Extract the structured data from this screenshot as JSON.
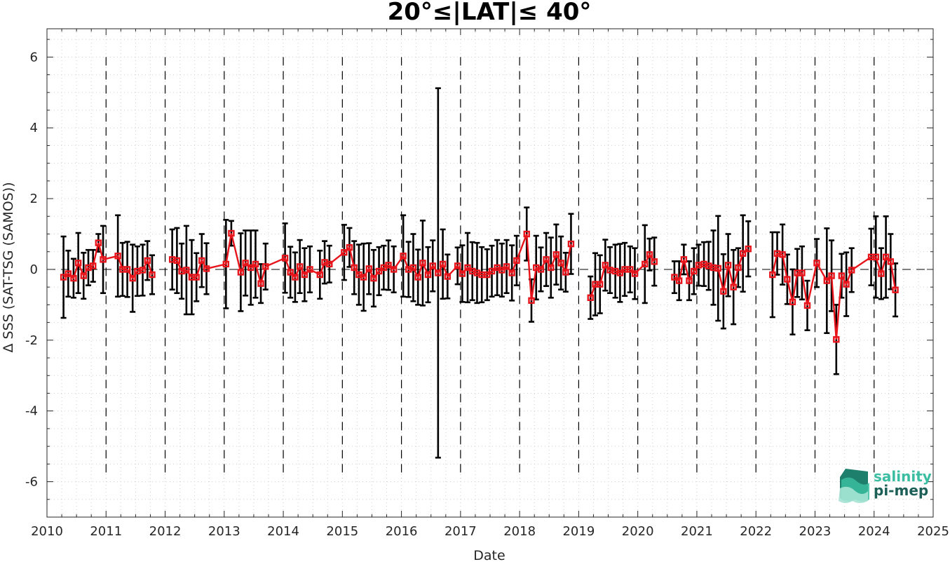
{
  "chart_data": {
    "type": "line",
    "title": "20°≤|LAT|≤ 40°",
    "xlabel": "Date",
    "ylabel": "Δ SSS (SAT-TSG (SAMOS))",
    "xlim": [
      2010,
      2025
    ],
    "ylim": [
      -7,
      6.8
    ],
    "xticks": [
      "2010",
      "2011",
      "2012",
      "2013",
      "2014",
      "2015",
      "2016",
      "2017",
      "2018",
      "2019",
      "2020",
      "2021",
      "2022",
      "2023",
      "2024",
      "2025"
    ],
    "yticks": [
      "-6",
      "-4",
      "-2",
      "0",
      "2",
      "4",
      "6"
    ],
    "grid": "minor dotted",
    "year_boundaries": "dashed vertical lines",
    "zero_line": "dashed horizontal line",
    "series": [
      {
        "color": "#e8141b",
        "marker": "square",
        "segments": [
          [
            [
              2010.28,
              -0.22,
              1.15
            ],
            [
              2010.36,
              -0.12,
              0.65
            ],
            [
              2010.45,
              -0.25,
              0.55
            ],
            [
              2010.53,
              0.18,
              0.85
            ],
            [
              2010.62,
              -0.18,
              0.65
            ],
            [
              2010.7,
              0.05,
              0.5
            ],
            [
              2010.78,
              0.1,
              0.45
            ],
            [
              2010.87,
              0.75,
              0.25
            ],
            [
              2010.95,
              0.28,
              0.95
            ],
            [
              2011.2,
              0.38,
              1.15
            ],
            [
              2011.28,
              0.0,
              0.75
            ],
            [
              2011.36,
              0.0,
              0.78
            ],
            [
              2011.45,
              -0.25,
              0.95
            ],
            [
              2011.53,
              -0.05,
              0.7
            ],
            [
              2011.62,
              -0.02,
              0.72
            ],
            [
              2011.7,
              0.25,
              0.55
            ],
            [
              2011.78,
              -0.15,
              0.55
            ]
          ],
          [
            [
              2012.12,
              0.28,
              0.85
            ],
            [
              2012.2,
              0.25,
              0.92
            ],
            [
              2012.28,
              -0.05,
              0.78
            ],
            [
              2012.36,
              -0.02,
              1.25
            ],
            [
              2012.45,
              -0.22,
              1.05
            ],
            [
              2012.53,
              -0.22,
              0.68
            ],
            [
              2012.62,
              0.25,
              0.75
            ],
            [
              2012.7,
              0.02,
              0.72
            ],
            [
              2013.03,
              0.15,
              1.25
            ],
            [
              2013.12,
              1.02,
              0.35
            ],
            [
              2013.28,
              -0.08,
              1.1
            ],
            [
              2013.36,
              0.18,
              0.92
            ],
            [
              2013.45,
              0.05,
              1.05
            ],
            [
              2013.53,
              0.15,
              0.95
            ],
            [
              2013.62,
              -0.4,
              0.55
            ],
            [
              2013.7,
              0.08,
              0.65
            ],
            [
              2014.03,
              0.32,
              0.98
            ],
            [
              2014.12,
              -0.08,
              0.72
            ],
            [
              2014.2,
              -0.22,
              0.7
            ],
            [
              2014.28,
              0.08,
              0.75
            ],
            [
              2014.36,
              -0.15,
              0.75
            ],
            [
              2014.45,
              0.0,
              0.65
            ],
            [
              2014.62,
              -0.15,
              0.68
            ],
            [
              2014.7,
              0.2,
              0.6
            ],
            [
              2014.78,
              0.15,
              0.52
            ],
            [
              2015.03,
              0.48,
              0.78
            ],
            [
              2015.12,
              0.62,
              0.55
            ],
            [
              2015.2,
              0.05,
              0.75
            ],
            [
              2015.28,
              -0.15,
              0.85
            ],
            [
              2015.36,
              -0.22,
              0.95
            ],
            [
              2015.45,
              0.02,
              0.72
            ],
            [
              2015.53,
              -0.25,
              0.8
            ],
            [
              2015.62,
              -0.05,
              0.68
            ],
            [
              2015.7,
              0.05,
              0.62
            ],
            [
              2015.78,
              0.12,
              0.7
            ],
            [
              2015.87,
              0.0,
              0.65
            ],
            [
              2016.03,
              0.38,
              1.15
            ],
            [
              2016.12,
              0.0,
              0.78
            ],
            [
              2016.2,
              0.05,
              0.95
            ],
            [
              2016.28,
              -0.22,
              0.78
            ],
            [
              2016.36,
              0.18,
              1.2
            ],
            [
              2016.45,
              -0.15,
              0.78
            ],
            [
              2016.53,
              0.1,
              0.72
            ],
            [
              2016.62,
              -0.1,
              5.22
            ],
            [
              2016.7,
              0.15,
              0.98
            ],
            [
              2016.78,
              -0.2,
              0.62
            ],
            [
              2016.95,
              0.1,
              0.52
            ],
            [
              2017.03,
              -0.12,
              0.8
            ],
            [
              2017.12,
              0.05,
              0.98
            ],
            [
              2017.2,
              -0.05,
              0.82
            ],
            [
              2017.28,
              -0.1,
              0.85
            ],
            [
              2017.36,
              -0.15,
              0.78
            ],
            [
              2017.45,
              -0.15,
              0.72
            ],
            [
              2017.53,
              -0.05,
              0.72
            ],
            [
              2017.62,
              0.05,
              0.78
            ],
            [
              2017.7,
              -0.02,
              0.75
            ],
            [
              2017.78,
              0.08,
              0.75
            ],
            [
              2017.87,
              -0.1,
              0.78
            ],
            [
              2017.95,
              0.25,
              0.7
            ],
            [
              2018.12,
              1.0,
              0.75
            ],
            [
              2018.2,
              -0.88,
              0.6
            ],
            [
              2018.28,
              0.05,
              0.9
            ],
            [
              2018.36,
              0.0,
              0.62
            ],
            [
              2018.45,
              0.28,
              0.75
            ],
            [
              2018.53,
              0.05,
              0.85
            ],
            [
              2018.62,
              0.42,
              0.85
            ],
            [
              2018.7,
              0.18,
              0.75
            ],
            [
              2018.78,
              -0.08,
              0.55
            ],
            [
              2018.87,
              0.72,
              0.85
            ]
          ],
          [
            [
              2019.2,
              -0.8,
              0.6
            ],
            [
              2019.28,
              -0.42,
              0.88
            ],
            [
              2019.36,
              -0.42,
              0.82
            ],
            [
              2019.45,
              0.12,
              0.72
            ],
            [
              2019.53,
              -0.02,
              0.65
            ],
            [
              2019.62,
              -0.05,
              0.75
            ],
            [
              2019.7,
              -0.1,
              0.82
            ],
            [
              2019.78,
              0.0,
              0.75
            ],
            [
              2019.87,
              0.0,
              0.65
            ],
            [
              2019.95,
              -0.12,
              0.72
            ],
            [
              2020.12,
              0.15,
              1.1
            ],
            [
              2020.2,
              0.42,
              0.45
            ],
            [
              2020.28,
              0.22,
              0.68
            ]
          ],
          [
            [
              2020.62,
              -0.22,
              0.45
            ],
            [
              2020.7,
              -0.32,
              0.55
            ],
            [
              2020.78,
              0.28,
              0.42
            ],
            [
              2020.87,
              -0.32,
              0.55
            ],
            [
              2020.95,
              -0.05,
              0.65
            ],
            [
              2021.03,
              0.12,
              0.58
            ],
            [
              2021.12,
              0.15,
              0.62
            ],
            [
              2021.2,
              0.1,
              0.68
            ],
            [
              2021.28,
              0.05,
              1.05
            ],
            [
              2021.36,
              0.03,
              1.48
            ],
            [
              2021.45,
              -0.62,
              1.05
            ],
            [
              2021.53,
              0.12,
              0.88
            ],
            [
              2021.62,
              -0.5,
              1.05
            ],
            [
              2021.7,
              0.05,
              0.55
            ],
            [
              2021.78,
              0.45,
              1.08
            ],
            [
              2021.87,
              0.58,
              0.78
            ]
          ],
          [
            [
              2022.28,
              -0.15,
              1.2
            ],
            [
              2022.36,
              0.45,
              0.6
            ],
            [
              2022.45,
              0.42,
              0.85
            ],
            [
              2022.53,
              -0.28,
              0.7
            ],
            [
              2022.62,
              -0.92,
              0.92
            ],
            [
              2022.7,
              -0.1,
              0.68
            ],
            [
              2022.78,
              -0.1,
              0.75
            ],
            [
              2022.87,
              -1.02,
              0.7
            ],
            [
              2023.03,
              0.18,
              0.68
            ],
            [
              2023.2,
              -0.32,
              1.48
            ],
            [
              2023.28,
              -0.18,
              1.0
            ],
            [
              2023.36,
              -1.98,
              0.98
            ],
            [
              2023.45,
              -0.18,
              0.62
            ],
            [
              2023.53,
              -0.42,
              0.9
            ],
            [
              2023.62,
              -0.02,
              0.62
            ],
            [
              2023.95,
              0.35,
              0.8
            ],
            [
              2024.03,
              0.35,
              1.15
            ],
            [
              2024.12,
              -0.12,
              0.72
            ],
            [
              2024.2,
              0.35,
              1.15
            ],
            [
              2024.28,
              0.22,
              0.78
            ],
            [
              2024.36,
              -0.58,
              0.75
            ]
          ]
        ]
      }
    ],
    "errorbar_color": "#000000",
    "annotation_logo": [
      "salinity",
      "pi-mep"
    ],
    "logo_colors": [
      "#3abda0",
      "#1c5f56"
    ]
  }
}
